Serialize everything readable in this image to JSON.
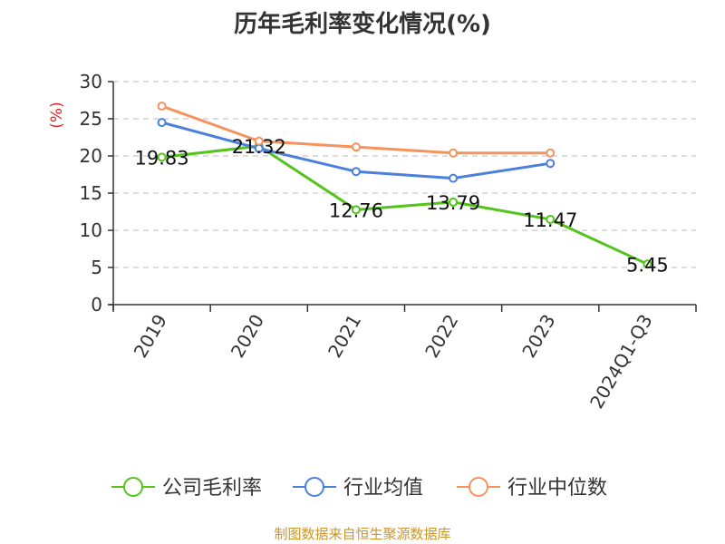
{
  "chart_data": {
    "type": "line",
    "title": "历年毛利率变化情况(%)",
    "ylabel": "(%)",
    "xlabel": "",
    "categories": [
      "2019",
      "2020",
      "2021",
      "2022",
      "2023",
      "2024Q1-Q3"
    ],
    "ylim": [
      0,
      30
    ],
    "yticks": [
      0,
      5,
      10,
      15,
      20,
      25,
      30
    ],
    "grid": true,
    "legend_position": "bottom",
    "series": [
      {
        "name": "公司毛利率",
        "color": "#52c41a",
        "values": [
          19.83,
          21.32,
          12.76,
          13.79,
          11.47,
          5.45
        ],
        "labels": [
          "19.83",
          "21.32",
          "12.76",
          "13.79",
          "11.47",
          "5.45"
        ]
      },
      {
        "name": "行业均值",
        "color": "#4a7fdc",
        "values": [
          24.5,
          21.0,
          17.9,
          17.0,
          19.0,
          null
        ]
      },
      {
        "name": "行业中位数",
        "color": "#f5925e",
        "values": [
          26.7,
          22.0,
          21.2,
          20.4,
          20.4,
          null
        ]
      }
    ]
  },
  "source": "制图数据来自恒生聚源数据库"
}
